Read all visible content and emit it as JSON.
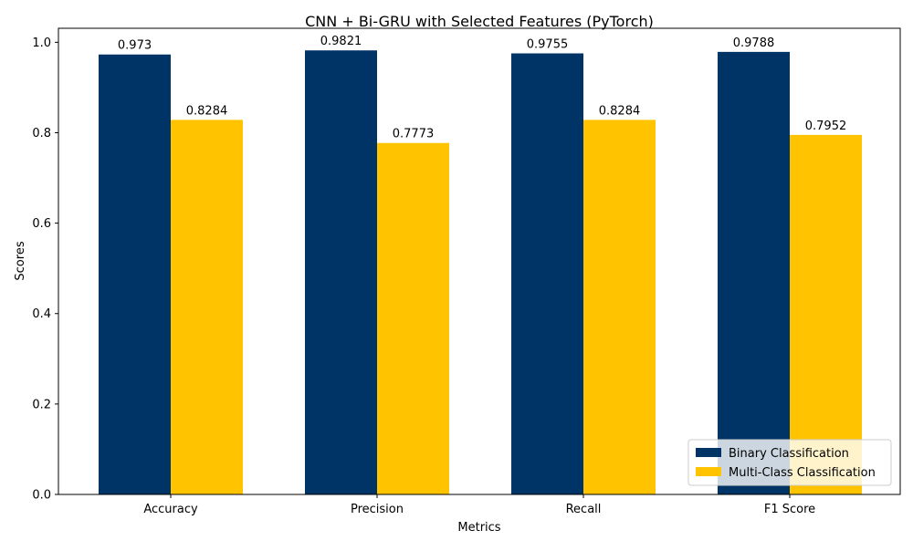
{
  "chart_data": {
    "type": "bar",
    "title": "CNN + Bi-GRU with Selected Features (PyTorch)",
    "xlabel": "Metrics",
    "ylabel": "Scores",
    "categories": [
      "Accuracy",
      "Precision",
      "Recall",
      "F1 Score"
    ],
    "series": [
      {
        "name": "Binary Classification",
        "color": "#003366",
        "values": [
          0.973,
          0.9821,
          0.9755,
          0.9788
        ],
        "labels": [
          "0.973",
          "0.9821",
          "0.9755",
          "0.9788"
        ]
      },
      {
        "name": "Multi-Class Classification",
        "color": "#ffc300",
        "values": [
          0.8284,
          0.7773,
          0.8284,
          0.7952
        ],
        "labels": [
          "0.8284",
          "0.7773",
          "0.8284",
          "0.7952"
        ]
      }
    ],
    "ylim": [
      0,
      1.031
    ],
    "yticks": [
      0.0,
      0.2,
      0.4,
      0.6,
      0.8,
      1.0
    ],
    "ytick_labels": [
      "0.0",
      "0.2",
      "0.4",
      "0.6",
      "0.8",
      "1.0"
    ],
    "grid": false,
    "legend_position": "lower-right"
  }
}
